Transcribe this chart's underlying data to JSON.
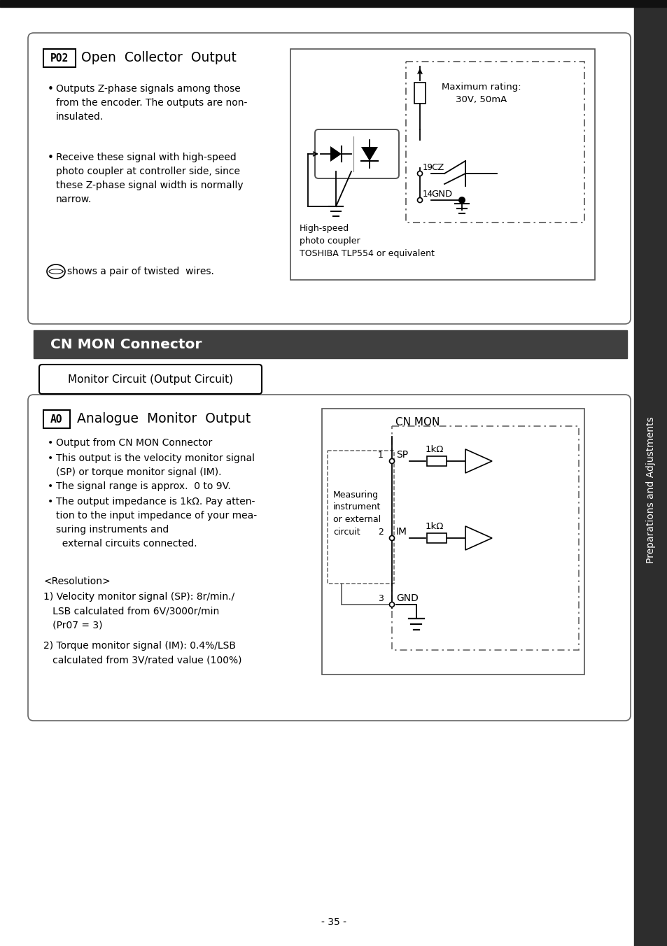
{
  "page_bg": "#ffffff",
  "sidebar_color": "#2d2d2d",
  "sidebar_text": "Preparations and Adjustments",
  "page_number": "- 35 -",
  "cn_mon_header": "CN MON Connector",
  "monitor_circuit_label": "Monitor Circuit (Output Circuit)"
}
